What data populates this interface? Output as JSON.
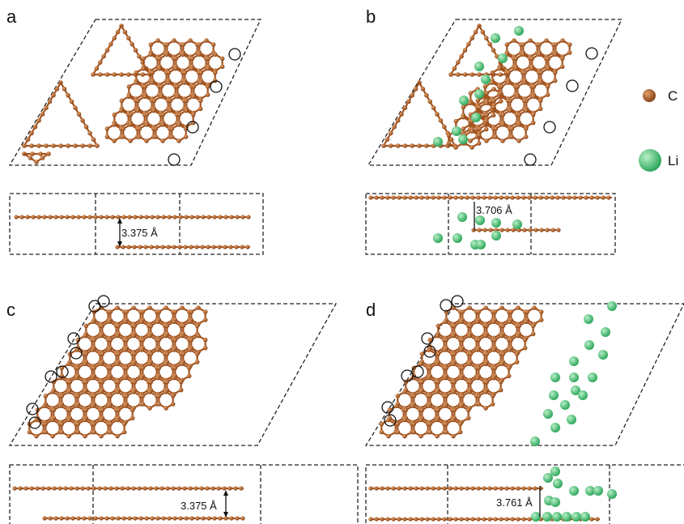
{
  "panels": [
    {
      "letter": "a",
      "distance": "3.375 Å",
      "lithium": false
    },
    {
      "letter": "b",
      "distance": "3.706 Å",
      "lithium": true
    },
    {
      "letter": "c",
      "distance": "3.375 Å",
      "lithium": false
    },
    {
      "letter": "d",
      "distance": "3.761 Å",
      "lithium": true
    }
  ],
  "legend": [
    {
      "symbol": "carbon",
      "label": "C"
    },
    {
      "symbol": "lithium",
      "label": "Li"
    }
  ],
  "colors": {
    "carbon": "#a4521c",
    "carbon_highlight": "#e3a06a",
    "lithium": "#3fbf6f",
    "lithium_highlight": "#b8f0c8"
  }
}
